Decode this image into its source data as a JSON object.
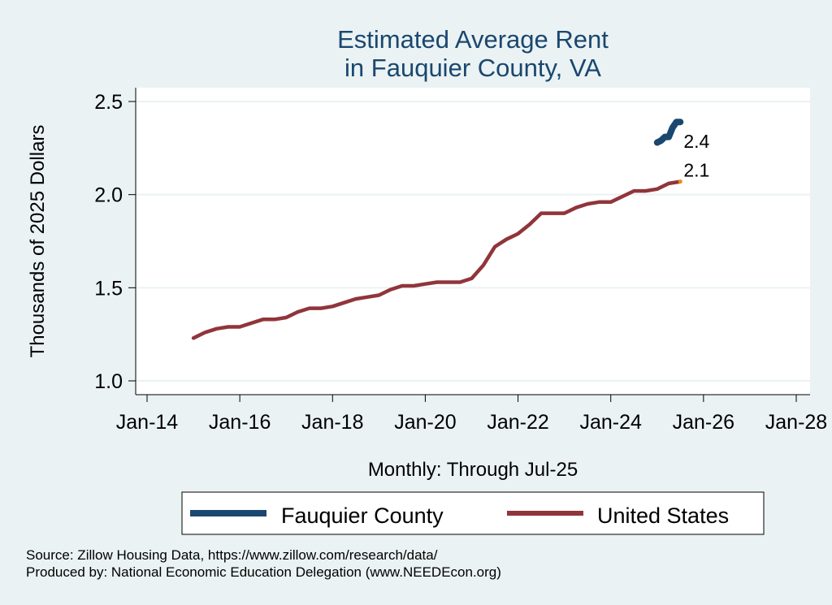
{
  "chart_data": {
    "type": "line",
    "title": [
      "Estimated Average Rent",
      "in Fauquier County, VA"
    ],
    "xlabel": "Monthly: Through Jul-25",
    "ylabel": "Thousands of 2025 Dollars",
    "xlim": [
      "2014-01",
      "2028-01"
    ],
    "ylim": [
      0.95,
      2.58
    ],
    "x_ticks": [
      {
        "date": "2014-01",
        "label": "Jan-14"
      },
      {
        "date": "2016-01",
        "label": "Jan-16"
      },
      {
        "date": "2018-01",
        "label": "Jan-18"
      },
      {
        "date": "2020-01",
        "label": "Jan-20"
      },
      {
        "date": "2022-01",
        "label": "Jan-22"
      },
      {
        "date": "2024-01",
        "label": "Jan-24"
      },
      {
        "date": "2026-01",
        "label": "Jan-26"
      },
      {
        "date": "2028-01",
        "label": "Jan-28"
      }
    ],
    "y_ticks": [
      {
        "value": 1.0,
        "label": "1.0"
      },
      {
        "value": 1.5,
        "label": "1.5"
      },
      {
        "value": 2.0,
        "label": "2.0"
      },
      {
        "value": 2.5,
        "label": "2.5"
      }
    ],
    "grid": true,
    "series": [
      {
        "name": "Fauquier County",
        "color": "#1a476f",
        "end_label": "2.4",
        "points": [
          [
            "2025-01",
            2.28
          ],
          [
            "2025-02",
            2.29
          ],
          [
            "2025-03",
            2.31
          ],
          [
            "2025-04",
            2.31
          ],
          [
            "2025-05",
            2.36
          ],
          [
            "2025-06",
            2.39
          ],
          [
            "2025-07",
            2.39
          ]
        ]
      },
      {
        "name": "United States",
        "color": "#90353b",
        "end_label": "2.1",
        "end_marker_color": "#e8900f",
        "points": [
          [
            "2015-01",
            1.23
          ],
          [
            "2015-04",
            1.26
          ],
          [
            "2015-07",
            1.28
          ],
          [
            "2015-10",
            1.29
          ],
          [
            "2016-01",
            1.29
          ],
          [
            "2016-04",
            1.31
          ],
          [
            "2016-07",
            1.33
          ],
          [
            "2016-10",
            1.33
          ],
          [
            "2017-01",
            1.34
          ],
          [
            "2017-04",
            1.37
          ],
          [
            "2017-07",
            1.39
          ],
          [
            "2017-10",
            1.39
          ],
          [
            "2018-01",
            1.4
          ],
          [
            "2018-04",
            1.42
          ],
          [
            "2018-07",
            1.44
          ],
          [
            "2018-10",
            1.45
          ],
          [
            "2019-01",
            1.46
          ],
          [
            "2019-04",
            1.49
          ],
          [
            "2019-07",
            1.51
          ],
          [
            "2019-10",
            1.51
          ],
          [
            "2020-01",
            1.52
          ],
          [
            "2020-04",
            1.53
          ],
          [
            "2020-07",
            1.53
          ],
          [
            "2020-10",
            1.53
          ],
          [
            "2021-01",
            1.55
          ],
          [
            "2021-04",
            1.62
          ],
          [
            "2021-07",
            1.72
          ],
          [
            "2021-10",
            1.76
          ],
          [
            "2022-01",
            1.79
          ],
          [
            "2022-04",
            1.84
          ],
          [
            "2022-07",
            1.9
          ],
          [
            "2022-10",
            1.9
          ],
          [
            "2023-01",
            1.9
          ],
          [
            "2023-04",
            1.93
          ],
          [
            "2023-07",
            1.95
          ],
          [
            "2023-10",
            1.96
          ],
          [
            "2024-01",
            1.96
          ],
          [
            "2024-04",
            1.99
          ],
          [
            "2024-07",
            2.02
          ],
          [
            "2024-10",
            2.02
          ],
          [
            "2025-01",
            2.03
          ],
          [
            "2025-04",
            2.06
          ],
          [
            "2025-07",
            2.07
          ]
        ]
      }
    ],
    "legend": {
      "position": "bottom",
      "items": [
        "Fauquier County",
        "United States"
      ]
    },
    "notes": [
      "Source: Zillow Housing Data, https://www.zillow.com/research/data/",
      "Produced by: National Economic Education Delegation (www.NEEDEcon.org)"
    ]
  }
}
